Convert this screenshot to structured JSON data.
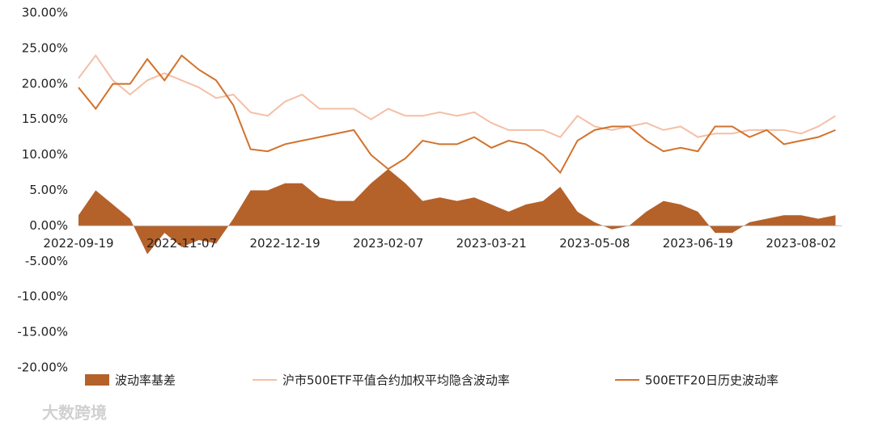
{
  "chart_data": {
    "type": "line",
    "categories": [
      "2022-09-19",
      null,
      null,
      null,
      null,
      null,
      "2022-11-07",
      null,
      null,
      null,
      null,
      null,
      "2022-12-19",
      null,
      null,
      null,
      null,
      null,
      "2023-02-07",
      null,
      null,
      null,
      null,
      null,
      "2023-03-21",
      null,
      null,
      null,
      null,
      null,
      "2023-05-08",
      null,
      null,
      null,
      null,
      null,
      "2023-06-19",
      null,
      null,
      null,
      null,
      null,
      "2023-08-02",
      null,
      null
    ],
    "ylim": [
      -20,
      30
    ],
    "yticks": [
      {
        "value": -20,
        "label": "-20.00%"
      },
      {
        "value": -15,
        "label": "-15.00%"
      },
      {
        "value": -10,
        "label": "-10.00%"
      },
      {
        "value": -5,
        "label": "-5.00%"
      },
      {
        "value": 0,
        "label": "0.00%"
      },
      {
        "value": 5,
        "label": "5.00%"
      },
      {
        "value": 10,
        "label": "10.00%"
      },
      {
        "value": 15,
        "label": "15.00%"
      },
      {
        "value": 20,
        "label": "20.00%"
      },
      {
        "value": 25,
        "label": "25.00%"
      },
      {
        "value": 30,
        "label": "30.00%"
      }
    ],
    "series": [
      {
        "name": "波动率基差",
        "kind": "area",
        "color": "#b5612a",
        "values": [
          1.5,
          5,
          3,
          1,
          -4,
          -1,
          -3,
          -2,
          -2.5,
          1,
          5,
          5,
          6,
          6,
          4,
          3.5,
          3.5,
          6,
          8,
          6,
          3.5,
          4,
          3.5,
          4,
          3,
          2,
          3,
          3.5,
          5.5,
          2,
          0.5,
          -0.5,
          0,
          2,
          3.5,
          3,
          2,
          -1,
          -1,
          0.5,
          1,
          1.5,
          1.5,
          1,
          1.5
        ]
      },
      {
        "name": "沪市500ETF平值合约加权平均隐含波动率",
        "kind": "line",
        "color": "#f4bfa6",
        "values": [
          20.8,
          24,
          20.5,
          18.5,
          20.5,
          21.5,
          20.5,
          19.5,
          18,
          18.5,
          16,
          15.5,
          17.5,
          18.5,
          16.5,
          16.5,
          16.5,
          15,
          16.5,
          15.5,
          15.5,
          16,
          15.5,
          16,
          14.5,
          13.5,
          13.5,
          13.5,
          12.5,
          15.5,
          14,
          13.5,
          14,
          14.5,
          13.5,
          14,
          12.5,
          13,
          13,
          13.5,
          13.5,
          13.5,
          13,
          14,
          15.5
        ]
      },
      {
        "name": "500ETF20日历史波动率",
        "kind": "line",
        "color": "#d2722c",
        "values": [
          19.5,
          16.5,
          20,
          20,
          23.5,
          20.5,
          24,
          22,
          20.5,
          17,
          10.8,
          10.5,
          11.5,
          12,
          12.5,
          13,
          13.5,
          10,
          8,
          9.5,
          12,
          11.5,
          11.5,
          12.5,
          11,
          12,
          11.5,
          10,
          7.5,
          12,
          13.5,
          14,
          14,
          12,
          10.5,
          11,
          10.5,
          14,
          14,
          12.5,
          13.5,
          11.5,
          12,
          12.5,
          13.5
        ]
      }
    ],
    "watermark": "大数跨境"
  }
}
